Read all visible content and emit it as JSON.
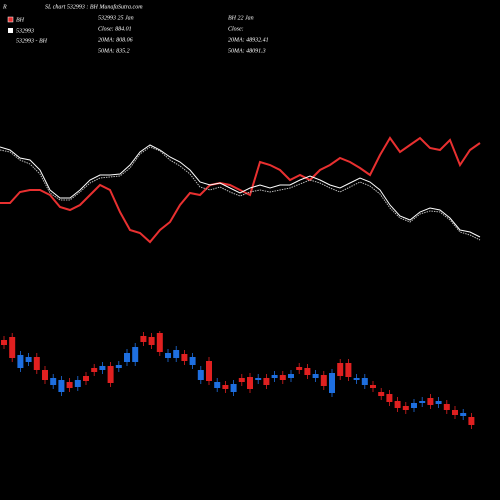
{
  "corner": "R",
  "chart_data": [
    {
      "type": "line",
      "title": "SL chart 532993 : BH MunafaSutra.com",
      "legend_note": "532993 - BH",
      "info": [
        [
          "532993 25 Jan",
          "Close: 884.01",
          "20MA: 808.06",
          "50MA: 835.2"
        ],
        [
          "BH 22 Jan",
          "Close:",
          "20MA: 48932.41",
          "50MA: 48091.3"
        ]
      ],
      "ylim": [
        0,
        120
      ],
      "series": [
        {
          "name": "BH",
          "color": "#e83030",
          "values": [
            47,
            47,
            58,
            60,
            60,
            55,
            43,
            40,
            45,
            55,
            65,
            60,
            38,
            20,
            17,
            8,
            20,
            28,
            45,
            57,
            55,
            65,
            67,
            65,
            60,
            55,
            88,
            85,
            80,
            70,
            75,
            70,
            80,
            85,
            92,
            88,
            82,
            75,
            95,
            112,
            98,
            105,
            112,
            102,
            100,
            110,
            85,
            100,
            107
          ]
        },
        {
          "name": "532993",
          "color": "#ffffff",
          "values": [
            103,
            100,
            92,
            90,
            80,
            60,
            52,
            52,
            60,
            70,
            75,
            75,
            76,
            85,
            98,
            105,
            100,
            93,
            88,
            80,
            68,
            65,
            67,
            62,
            57,
            62,
            65,
            62,
            65,
            65,
            70,
            74,
            70,
            65,
            62,
            67,
            72,
            68,
            60,
            45,
            34,
            30,
            38,
            42,
            40,
            32,
            20,
            18,
            13
          ]
        },
        {
          "color": "#bbbbbb",
          "dashed": true,
          "values": [
            100,
            98,
            90,
            86,
            76,
            57,
            50,
            50,
            58,
            67,
            72,
            73,
            74,
            82,
            96,
            103,
            99,
            90,
            84,
            76,
            63,
            60,
            63,
            58,
            54,
            58,
            60,
            58,
            60,
            62,
            66,
            70,
            67,
            62,
            58,
            63,
            68,
            64,
            56,
            42,
            32,
            28,
            36,
            39,
            38,
            30,
            18,
            15,
            10
          ]
        }
      ]
    },
    {
      "type": "candlestick",
      "ylim": [
        70,
        170
      ],
      "up_color": "#1e6fe0",
      "down_color": "#e02020",
      "open": [
        160,
        163,
        132,
        138,
        143,
        130,
        115,
        108,
        118,
        113,
        124,
        132,
        130,
        134,
        132,
        138,
        138,
        164,
        163,
        167,
        142,
        142,
        146,
        135,
        120,
        139,
        112,
        115,
        108,
        122,
        123,
        120,
        122,
        122,
        125,
        122,
        133,
        132,
        122,
        125,
        107,
        137,
        137,
        120,
        115,
        115,
        108,
        106,
        99,
        94,
        92,
        97,
        102,
        96,
        96,
        90,
        84,
        83
      ],
      "high": [
        164,
        167,
        149,
        147,
        147,
        134,
        126,
        124,
        122,
        124,
        128,
        136,
        138,
        138,
        139,
        151,
        157,
        168,
        167,
        169,
        151,
        154,
        150,
        147,
        134,
        143,
        122,
        119,
        120,
        126,
        127,
        126,
        126,
        129,
        129,
        130,
        137,
        136,
        130,
        129,
        131,
        141,
        141,
        126,
        126,
        119,
        112,
        110,
        103,
        98,
        101,
        103,
        106,
        103,
        100,
        94,
        91,
        87
      ],
      "low": [
        151,
        138,
        128,
        134,
        126,
        116,
        111,
        104,
        108,
        109,
        115,
        124,
        126,
        113,
        128,
        134,
        134,
        154,
        151,
        144,
        138,
        138,
        135,
        131,
        116,
        115,
        108,
        107,
        104,
        114,
        107,
        116,
        111,
        118,
        116,
        118,
        126,
        121,
        118,
        110,
        103,
        120,
        119,
        116,
        111,
        108,
        100,
        94,
        88,
        86,
        88,
        93,
        91,
        92,
        86,
        81,
        80,
        71
      ],
      "close": [
        155,
        142,
        145,
        143,
        130,
        120,
        122,
        120,
        112,
        120,
        119,
        128,
        134,
        117,
        135,
        147,
        153,
        158,
        155,
        148,
        147,
        150,
        139,
        143,
        130,
        119,
        118,
        111,
        116,
        118,
        111,
        122,
        115,
        125,
        120,
        126,
        130,
        125,
        126,
        114,
        127,
        124,
        123,
        122,
        122,
        112,
        104,
        98,
        92,
        90,
        97,
        99,
        95,
        99,
        90,
        85,
        87,
        75
      ]
    }
  ]
}
